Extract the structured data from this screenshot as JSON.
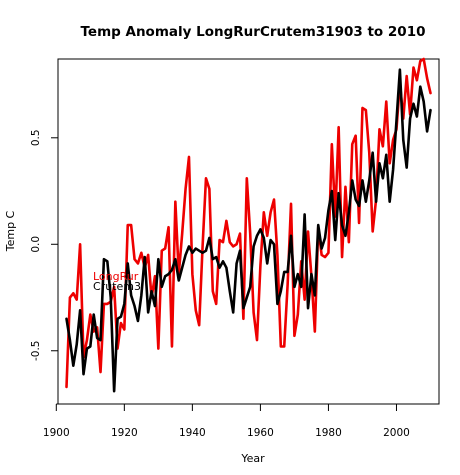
{
  "chart_data": {
    "type": "line",
    "title": "Temp Anomaly  LongRurCrutem31903  to  2010",
    "xlabel": "Year",
    "ylabel": "Temp C",
    "xlim": [
      1903,
      2010
    ],
    "ylim": [
      -0.75,
      0.87
    ],
    "x_ticks": [
      1900,
      1920,
      1940,
      1960,
      1980,
      2000
    ],
    "y_ticks": [
      -0.5,
      0.0,
      0.5
    ],
    "y_tick_labels": [
      "-0.5",
      "0.0",
      "0.5"
    ],
    "grid": false,
    "legend": {
      "placement": "left-middle",
      "entries": [
        {
          "label": "LongRur",
          "color": "#ee0000"
        },
        {
          "label": "Crutem3",
          "color": "#000000"
        }
      ]
    },
    "series": [
      {
        "name": "LongRur",
        "color": "#ee0000",
        "x": [
          1903,
          1904,
          1905,
          1906,
          1907,
          1908,
          1909,
          1910,
          1911,
          1912,
          1913,
          1914,
          1915,
          1916,
          1917,
          1918,
          1919,
          1920,
          1921,
          1922,
          1923,
          1924,
          1925,
          1926,
          1927,
          1928,
          1929,
          1930,
          1931,
          1932,
          1933,
          1934,
          1935,
          1936,
          1937,
          1938,
          1939,
          1940,
          1941,
          1942,
          1943,
          1944,
          1945,
          1946,
          1947,
          1948,
          1949,
          1950,
          1951,
          1952,
          1953,
          1954,
          1955,
          1956,
          1957,
          1958,
          1959,
          1960,
          1961,
          1962,
          1963,
          1964,
          1965,
          1966,
          1967,
          1968,
          1969,
          1970,
          1971,
          1972,
          1973,
          1974,
          1975,
          1976,
          1977,
          1978,
          1979,
          1980,
          1981,
          1982,
          1983,
          1984,
          1985,
          1986,
          1987,
          1988,
          1989,
          1990,
          1991,
          1992,
          1993,
          1994,
          1995,
          1996,
          1997,
          1998,
          1999,
          2000,
          2001,
          2002,
          2003,
          2004,
          2005,
          2006,
          2007,
          2008,
          2009,
          2010
        ],
        "y": [
          -0.67,
          -0.25,
          -0.23,
          -0.26,
          0.0,
          -0.53,
          -0.45,
          -0.33,
          -0.41,
          -0.39,
          -0.6,
          -0.28,
          -0.28,
          -0.27,
          -0.2,
          -0.49,
          -0.37,
          -0.4,
          0.09,
          0.09,
          -0.07,
          -0.09,
          -0.04,
          -0.11,
          -0.05,
          -0.25,
          -0.15,
          -0.49,
          -0.03,
          -0.02,
          0.08,
          -0.48,
          0.2,
          -0.14,
          0.05,
          0.26,
          0.41,
          -0.14,
          -0.31,
          -0.38,
          -0.01,
          0.31,
          0.26,
          -0.22,
          -0.28,
          0.02,
          0.01,
          0.11,
          0.01,
          -0.01,
          0.0,
          0.05,
          -0.35,
          0.31,
          0.05,
          -0.32,
          -0.45,
          -0.1,
          0.15,
          0.04,
          0.15,
          0.21,
          -0.05,
          -0.48,
          -0.48,
          -0.19,
          0.19,
          -0.43,
          -0.33,
          -0.08,
          -0.26,
          0.06,
          -0.15,
          -0.41,
          0.08,
          -0.05,
          -0.06,
          -0.04,
          0.47,
          0.13,
          0.55,
          -0.06,
          0.27,
          0.01,
          0.47,
          0.51,
          0.1,
          0.64,
          0.63,
          0.43,
          0.06,
          0.21,
          0.54,
          0.46,
          0.67,
          0.38,
          0.49,
          0.54,
          0.76,
          0.59,
          0.79,
          0.61,
          0.83,
          0.77,
          0.86,
          0.87,
          0.78,
          0.71
        ]
      },
      {
        "name": "Crutem3",
        "color": "#000000",
        "x": [
          1903,
          1904,
          1905,
          1906,
          1907,
          1908,
          1909,
          1910,
          1911,
          1912,
          1913,
          1914,
          1915,
          1916,
          1917,
          1918,
          1919,
          1920,
          1921,
          1922,
          1923,
          1924,
          1925,
          1926,
          1927,
          1928,
          1929,
          1930,
          1931,
          1932,
          1933,
          1934,
          1935,
          1936,
          1937,
          1938,
          1939,
          1940,
          1941,
          1942,
          1943,
          1944,
          1945,
          1946,
          1947,
          1948,
          1949,
          1950,
          1951,
          1952,
          1953,
          1954,
          1955,
          1956,
          1957,
          1958,
          1959,
          1960,
          1961,
          1962,
          1963,
          1964,
          1965,
          1966,
          1967,
          1968,
          1969,
          1970,
          1971,
          1972,
          1973,
          1974,
          1975,
          1976,
          1977,
          1978,
          1979,
          1980,
          1981,
          1982,
          1983,
          1984,
          1985,
          1986,
          1987,
          1988,
          1989,
          1990,
          1991,
          1992,
          1993,
          1994,
          1995,
          1996,
          1997,
          1998,
          1999,
          2000,
          2001,
          2002,
          2003,
          2004,
          2005,
          2006,
          2007,
          2008,
          2009,
          2010
        ],
        "y": [
          -0.35,
          -0.45,
          -0.57,
          -0.47,
          -0.31,
          -0.61,
          -0.49,
          -0.48,
          -0.33,
          -0.44,
          -0.45,
          -0.07,
          -0.08,
          -0.25,
          -0.69,
          -0.35,
          -0.34,
          -0.28,
          -0.09,
          -0.24,
          -0.29,
          -0.36,
          -0.24,
          -0.06,
          -0.32,
          -0.22,
          -0.29,
          -0.07,
          -0.2,
          -0.15,
          -0.14,
          -0.12,
          -0.07,
          -0.17,
          -0.11,
          -0.05,
          -0.01,
          -0.04,
          -0.02,
          -0.03,
          -0.04,
          -0.03,
          0.03,
          -0.07,
          -0.06,
          -0.11,
          -0.08,
          -0.11,
          -0.22,
          -0.32,
          -0.09,
          -0.03,
          -0.3,
          -0.25,
          -0.2,
          -0.01,
          0.04,
          0.07,
          0.03,
          -0.09,
          0.02,
          0.0,
          -0.28,
          -0.22,
          -0.13,
          -0.13,
          0.04,
          -0.2,
          -0.14,
          -0.2,
          0.14,
          -0.3,
          -0.14,
          -0.24,
          0.09,
          -0.02,
          0.03,
          0.16,
          0.25,
          0.02,
          0.24,
          0.09,
          0.04,
          0.15,
          0.3,
          0.21,
          0.18,
          0.3,
          0.2,
          0.3,
          0.43,
          0.2,
          0.38,
          0.31,
          0.42,
          0.2,
          0.35,
          0.58,
          0.82,
          0.49,
          0.36,
          0.59,
          0.66,
          0.6,
          0.74,
          0.67,
          0.53,
          0.63
        ]
      }
    ]
  }
}
